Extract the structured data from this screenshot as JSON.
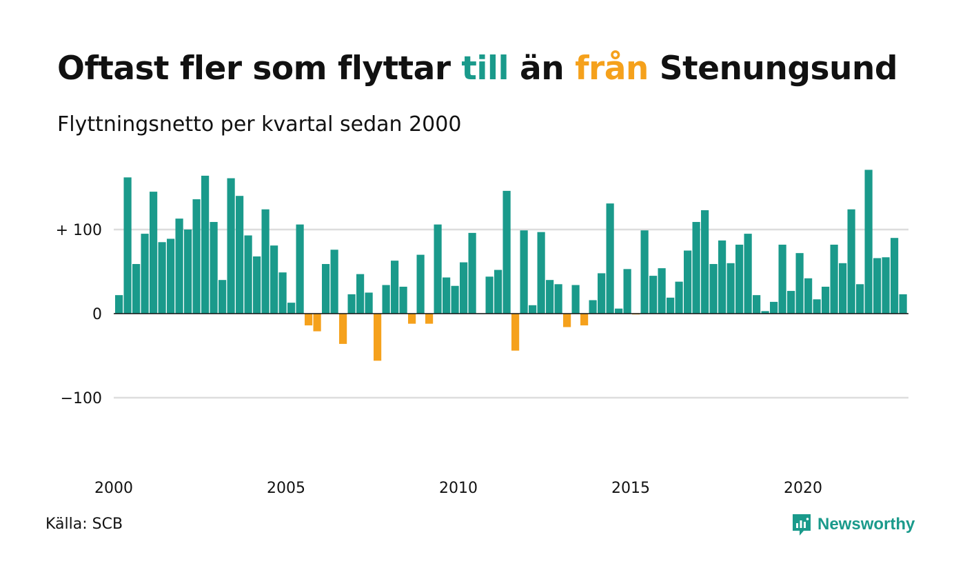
{
  "title": {
    "part1": "Oftast fler som flyttar ",
    "word_to": "till",
    "part2": " än ",
    "word_from": "från",
    "part3": " Stenungsund"
  },
  "subtitle": "Flyttningsnetto per kvartal sedan 2000",
  "source": "Källa: SCB",
  "brand": "Newsworthy",
  "colors": {
    "positive": "#1a9a8b",
    "negative": "#f5a11c",
    "grid": "#dddddd",
    "axis": "#111111",
    "text": "#111111"
  },
  "chart_data": {
    "type": "bar",
    "y_ticks": [
      {
        "value": 100,
        "label": "+ 100"
      },
      {
        "value": 0,
        "label": "0"
      },
      {
        "value": -100,
        "label": "−100"
      }
    ],
    "ylim": [
      -190,
      175
    ],
    "x_ticks": [
      {
        "year": 2000,
        "label": "2000"
      },
      {
        "year": 2005,
        "label": "2005"
      },
      {
        "year": 2010,
        "label": "2010"
      },
      {
        "year": 2015,
        "label": "2015"
      },
      {
        "year": 2020,
        "label": "2020"
      }
    ],
    "start_year": 2000,
    "grid": true,
    "values": [
      22,
      162,
      59,
      95,
      145,
      85,
      89,
      113,
      100,
      136,
      164,
      109,
      40,
      161,
      140,
      93,
      68,
      124,
      81,
      49,
      13,
      106,
      -14,
      -21,
      59,
      76,
      -36,
      23,
      47,
      25,
      -56,
      34,
      63,
      32,
      -12,
      70,
      -12,
      106,
      43,
      33,
      61,
      96,
      0,
      44,
      52,
      146,
      -44,
      99,
      10,
      97,
      40,
      35,
      -16,
      34,
      -14,
      16,
      48,
      131,
      6,
      53,
      -1,
      99,
      45,
      54,
      19,
      38,
      75,
      109,
      123,
      59,
      87,
      60,
      82,
      95,
      22,
      3,
      14,
      82,
      27,
      72,
      42,
      17,
      32,
      82,
      60,
      124,
      35,
      171,
      66,
      67,
      90,
      23
    ]
  }
}
